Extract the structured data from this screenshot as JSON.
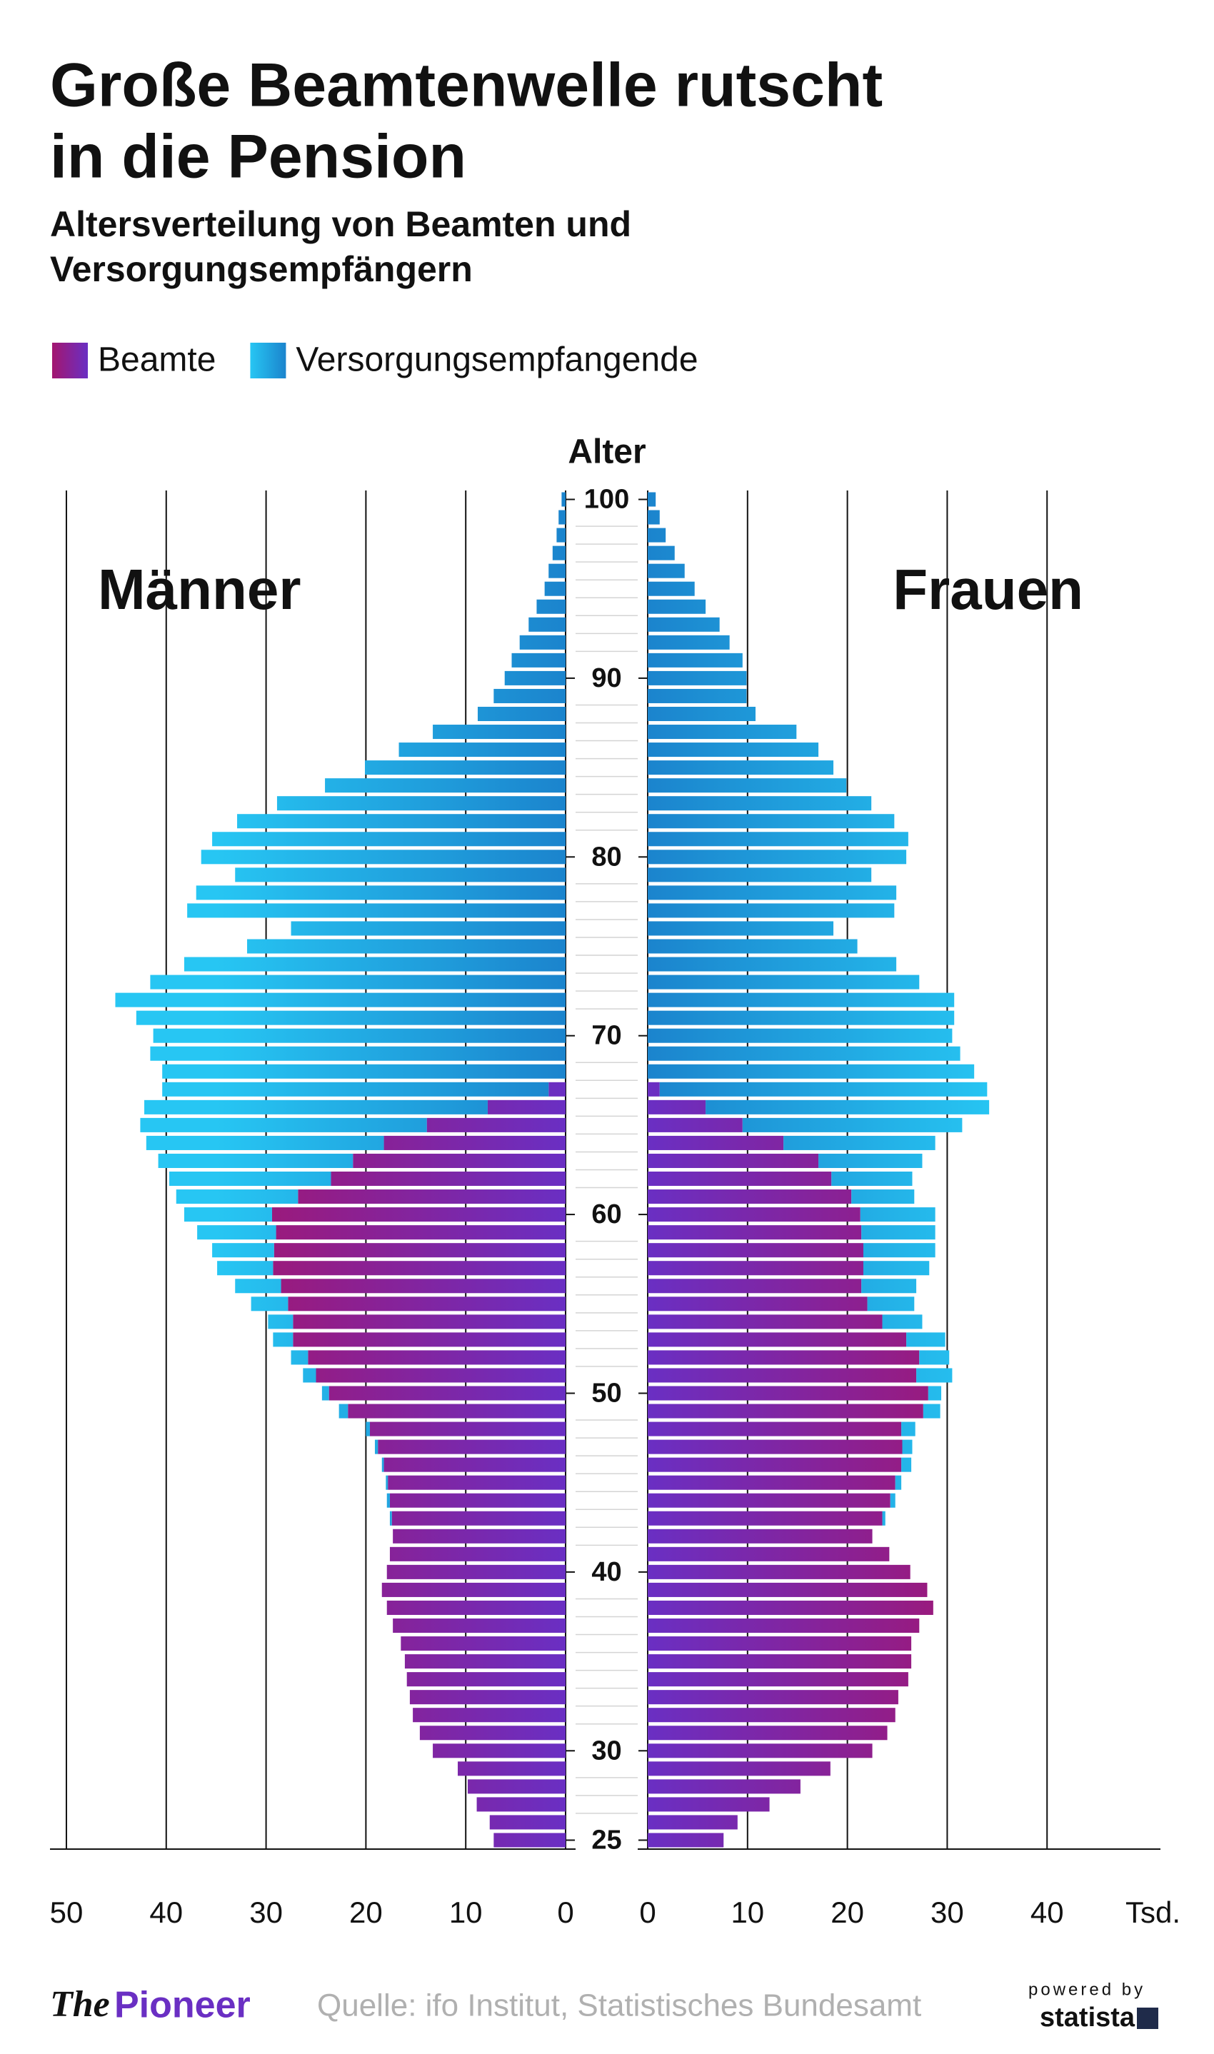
{
  "chart_data": {
    "type": "pyramid",
    "title": [
      "Große Beamtenwelle rutscht",
      "in die Pension"
    ],
    "subtitle": [
      "Altersverteilung von Beamten und",
      "Versorgungsempfängern"
    ],
    "y_label": "Alter",
    "x_unit": "Tsd.",
    "series": [
      {
        "name": "Beamte",
        "color": [
          "#a3166f",
          "#6a2fc3"
        ]
      },
      {
        "name": "Versorgungsempfangende",
        "color": [
          "#27c6f3",
          "#1b84cd"
        ]
      }
    ],
    "ages": [
      25,
      26,
      27,
      28,
      29,
      30,
      31,
      32,
      33,
      34,
      35,
      36,
      37,
      38,
      39,
      40,
      41,
      42,
      43,
      44,
      45,
      46,
      47,
      48,
      49,
      50,
      51,
      52,
      53,
      54,
      55,
      56,
      57,
      58,
      59,
      60,
      61,
      62,
      63,
      64,
      65,
      66,
      67,
      68,
      69,
      70,
      71,
      72,
      73,
      74,
      75,
      76,
      77,
      78,
      79,
      80,
      81,
      82,
      83,
      84,
      85,
      86,
      87,
      88,
      89,
      90,
      91,
      92,
      93,
      94,
      95,
      96,
      97,
      98,
      99,
      100
    ],
    "ylim": [
      24.5,
      100.5
    ],
    "yticks": [
      25,
      30,
      40,
      50,
      60,
      70,
      80,
      90,
      100
    ],
    "xlim": [
      0,
      51.5
    ],
    "sides": [
      {
        "label": "Männer",
        "xticks": [
          0,
          10,
          20,
          30,
          40,
          50
        ],
        "values": [
          [
            7.2,
            7.6,
            8.9,
            9.8,
            10.8,
            13.3,
            14.6,
            15.3,
            15.6,
            15.9,
            16.1,
            16.5,
            17.3,
            17.9,
            18.4,
            17.9,
            17.6,
            17.3,
            17.4,
            17.6,
            17.8,
            18.2,
            18.8,
            19.6,
            21.8,
            23.7,
            25.0,
            25.8,
            27.3,
            27.3,
            27.8,
            28.5,
            29.3,
            29.2,
            29.0,
            29.4,
            26.8,
            23.5,
            21.3,
            18.2,
            13.9,
            7.8,
            1.7,
            0,
            0,
            0,
            0,
            0,
            0,
            0,
            0,
            0,
            0,
            0,
            0,
            0,
            0,
            0,
            0,
            0,
            0,
            0,
            0,
            0,
            0,
            0,
            0,
            0,
            0,
            0,
            0,
            0,
            0,
            0,
            0,
            0
          ],
          [
            0,
            0,
            0,
            0,
            0,
            0,
            0,
            0,
            0,
            0,
            0,
            0,
            0,
            0,
            0,
            0,
            0,
            0,
            0.2,
            0.3,
            0.2,
            0.2,
            0.3,
            0.4,
            0.9,
            0.7,
            1.3,
            1.7,
            2.0,
            2.5,
            3.7,
            4.6,
            5.6,
            6.2,
            7.9,
            8.8,
            12.2,
            16.2,
            19.5,
            23.8,
            28.7,
            34.4,
            38.7,
            40.4,
            41.6,
            41.3,
            43.0,
            45.1,
            41.6,
            38.2,
            31.9,
            27.5,
            37.9,
            37.0,
            33.1,
            36.5,
            35.4,
            32.9,
            28.9,
            24.1,
            20.1,
            16.7,
            13.3,
            8.8,
            7.2,
            6.1,
            5.4,
            4.6,
            3.7,
            2.9,
            2.1,
            1.7,
            1.3,
            0.9,
            0.7,
            0.4
          ]
        ]
      },
      {
        "label": "Frauen",
        "xticks": [
          0,
          10,
          20,
          30,
          40
        ],
        "values": [
          [
            7.6,
            9.0,
            12.2,
            15.3,
            18.3,
            22.5,
            24.0,
            24.8,
            25.1,
            26.1,
            26.4,
            26.4,
            27.2,
            28.6,
            28.0,
            26.3,
            24.2,
            22.5,
            23.5,
            24.3,
            24.8,
            25.4,
            25.5,
            25.4,
            27.6,
            28.1,
            26.9,
            27.2,
            25.9,
            23.5,
            22.0,
            21.4,
            21.6,
            21.6,
            21.4,
            21.3,
            20.4,
            18.4,
            17.1,
            13.6,
            9.5,
            5.8,
            1.2,
            0,
            0,
            0,
            0,
            0,
            0,
            0,
            0,
            0,
            0,
            0,
            0,
            0,
            0,
            0,
            0,
            0,
            0,
            0,
            0,
            0,
            0,
            0,
            0,
            0,
            0,
            0,
            0,
            0,
            0,
            0,
            0,
            0
          ],
          [
            0,
            0,
            0,
            0,
            0,
            0,
            0,
            0,
            0,
            0,
            0,
            0,
            0,
            0,
            0,
            0,
            0,
            0,
            0.3,
            0.5,
            0.6,
            1.0,
            1.0,
            1.4,
            1.7,
            1.3,
            3.6,
            3.0,
            3.9,
            4.0,
            4.7,
            5.5,
            6.6,
            7.2,
            7.4,
            7.5,
            6.3,
            8.1,
            10.4,
            15.2,
            22.0,
            28.4,
            32.8,
            32.7,
            31.3,
            30.5,
            30.7,
            30.7,
            27.2,
            24.9,
            21.0,
            18.6,
            24.7,
            24.9,
            22.4,
            25.9,
            26.1,
            24.7,
            22.4,
            19.9,
            18.6,
            17.1,
            14.9,
            10.8,
            9.9,
            9.9,
            9.5,
            8.2,
            7.2,
            5.8,
            4.7,
            3.7,
            2.7,
            1.8,
            1.2,
            0.8
          ]
        ]
      }
    ]
  },
  "footer": {
    "brand_the": "The",
    "brand_name": "Pioneer",
    "source": "Quelle: ifo Institut, Statistisches Bundesamt",
    "powered": "powered by",
    "statista": "statista"
  }
}
